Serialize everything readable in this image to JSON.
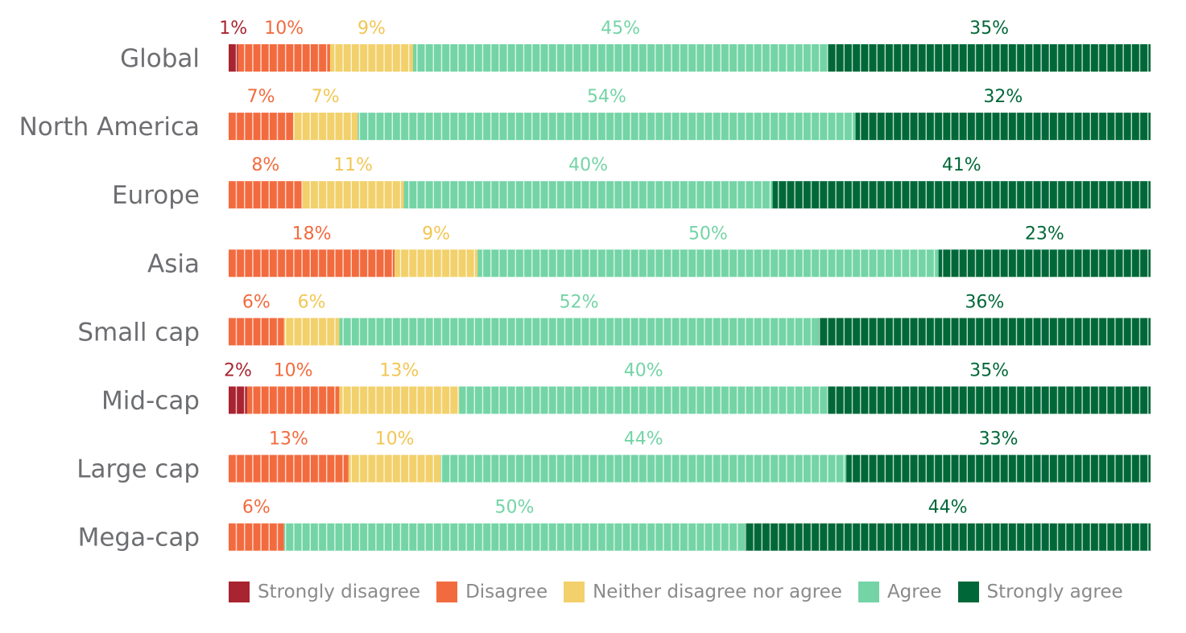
{
  "chart_data": {
    "type": "bar",
    "orientation": "horizontal",
    "stacked": true,
    "categories": [
      "Global",
      "North America",
      "Europe",
      "Asia",
      "Small cap",
      "Mid-cap",
      "Large cap",
      "Mega-cap"
    ],
    "series": [
      {
        "name": "Strongly disagree",
        "color": "#a82430",
        "values": [
          1,
          0,
          0,
          0,
          0,
          2,
          0,
          0
        ],
        "labels": [
          "1%",
          "",
          "",
          "",
          "",
          "2%",
          "",
          ""
        ]
      },
      {
        "name": "Disagree",
        "color": "#f26b3f",
        "values": [
          10,
          7,
          8,
          18,
          6,
          10,
          13,
          6
        ],
        "labels": [
          "10%",
          "7%",
          "8%",
          "18%",
          "6%",
          "10%",
          "13%",
          "6%"
        ]
      },
      {
        "name": "Neither disagree nor agree",
        "color": "#f2d06b",
        "values": [
          9,
          7,
          11,
          9,
          6,
          13,
          10,
          0
        ],
        "labels": [
          "9%",
          "7%",
          "11%",
          "9%",
          "6%",
          "13%",
          "10%",
          ""
        ]
      },
      {
        "name": "Agree",
        "color": "#74d4a6",
        "values": [
          45,
          54,
          40,
          50,
          52,
          40,
          44,
          50
        ],
        "labels": [
          "45%",
          "54%",
          "40%",
          "50%",
          "52%",
          "40%",
          "44%",
          "50%"
        ]
      },
      {
        "name": "Strongly agree",
        "color": "#006838",
        "values": [
          35,
          32,
          41,
          23,
          36,
          35,
          33,
          44
        ],
        "labels": [
          "35%",
          "32%",
          "41%",
          "23%",
          "36%",
          "35%",
          "33%",
          "44%"
        ]
      }
    ],
    "label_colors": [
      "#a82430",
      "#f26b3f",
      "#f2c654",
      "#74d4a6",
      "#006838"
    ],
    "legend_position": "bottom",
    "grid": false
  }
}
